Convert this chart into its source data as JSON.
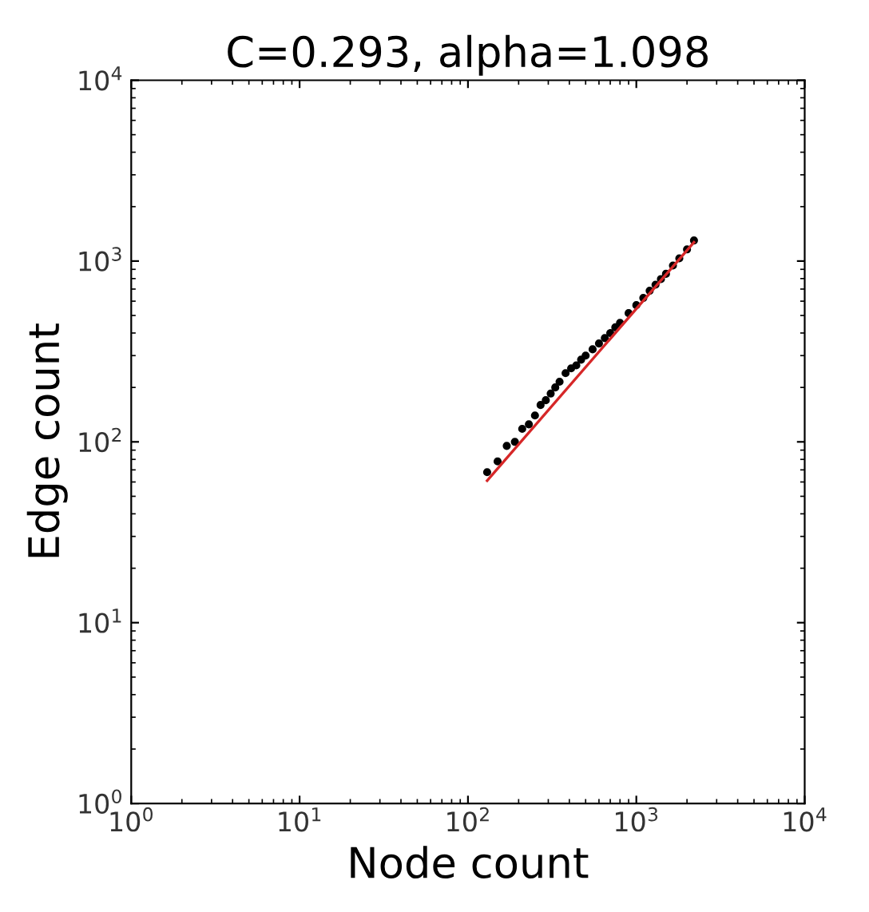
{
  "chart_data": {
    "type": "scatter",
    "title": "C=0.293, alpha=1.098",
    "xlabel": "Node count",
    "ylabel": "Edge count",
    "log": "xy",
    "grid": false,
    "xlim": [
      1,
      10000
    ],
    "ylim": [
      1,
      10000
    ],
    "xticks": [
      {
        "value": 1,
        "label": "10$^{0}$"
      },
      {
        "value": 10,
        "label": "10$^{1}$"
      },
      {
        "value": 100,
        "label": "10$^{2}$"
      },
      {
        "value": 1000,
        "label": "10$^{3}$"
      },
      {
        "value": 10000,
        "label": "10$^{4}$"
      }
    ],
    "yticks": [
      {
        "value": 1,
        "label": "10$^{0}$"
      },
      {
        "value": 10,
        "label": "10$^{1}$"
      },
      {
        "value": 100,
        "label": "10$^{2}$"
      },
      {
        "value": 1000,
        "label": "10$^{3}$"
      },
      {
        "value": 10000,
        "label": "10$^{4}$"
      }
    ],
    "series": [
      {
        "color": "#000000",
        "marker": "circle",
        "x": [
          130,
          150,
          170,
          190,
          210,
          230,
          250,
          270,
          290,
          310,
          330,
          350,
          380,
          410,
          440,
          470,
          500,
          550,
          600,
          650,
          700,
          750,
          800,
          900,
          1000,
          1100,
          1200,
          1300,
          1400,
          1500,
          1650,
          1800,
          2000,
          2200
        ],
        "values": [
          68,
          78,
          95,
          100,
          118,
          125,
          140,
          160,
          170,
          185,
          200,
          215,
          240,
          255,
          265,
          285,
          300,
          325,
          350,
          375,
          400,
          430,
          455,
          515,
          570,
          625,
          685,
          740,
          795,
          850,
          945,
          1035,
          1160,
          1300
        ]
      },
      {
        "type": "line",
        "color": "#d62728",
        "marker": "none",
        "line_style": "solid",
        "x": [
          130,
          2200
        ],
        "values": [
          61,
          1270
        ]
      }
    ]
  }
}
